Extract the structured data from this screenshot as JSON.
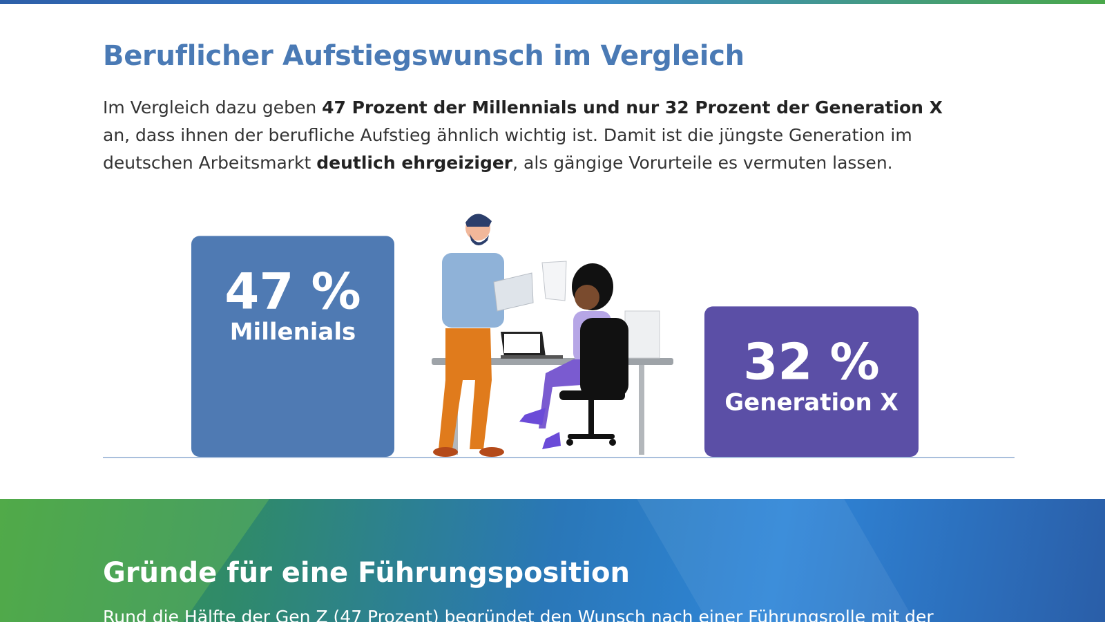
{
  "header": {
    "title": "Beruflicher Aufstiegswunsch im Vergleich"
  },
  "intro": [
    {
      "text": "Im Vergleich dazu geben ",
      "bold": false
    },
    {
      "text": "47 Prozent der Millennials und nur 32 Prozent der Generation X",
      "bold": true
    },
    {
      "text": " an, dass ihnen der berufliche Aufstieg ähnlich wichtig ist. Damit ist die jüngste Generation im deutschen Arbeitsmarkt ",
      "bold": false
    },
    {
      "text": "deutlich ehrgeiziger",
      "bold": true
    },
    {
      "text": ", als gängige Vorurteile es vermuten lassen.",
      "bold": false
    }
  ],
  "chart_data": {
    "type": "bar",
    "categories": [
      "Millenials",
      "Generation X"
    ],
    "values": [
      47,
      32
    ],
    "value_labels": [
      "47 %",
      "32 %"
    ],
    "colors": [
      "#4f7ab3",
      "#5b4fa6"
    ]
  },
  "next_section": {
    "title": "Gründe für eine Führungsposition",
    "text": "Rund die Hälfte der Gen Z (47 Prozent) begründet den Wunsch nach einer Führungsrolle mit der"
  }
}
